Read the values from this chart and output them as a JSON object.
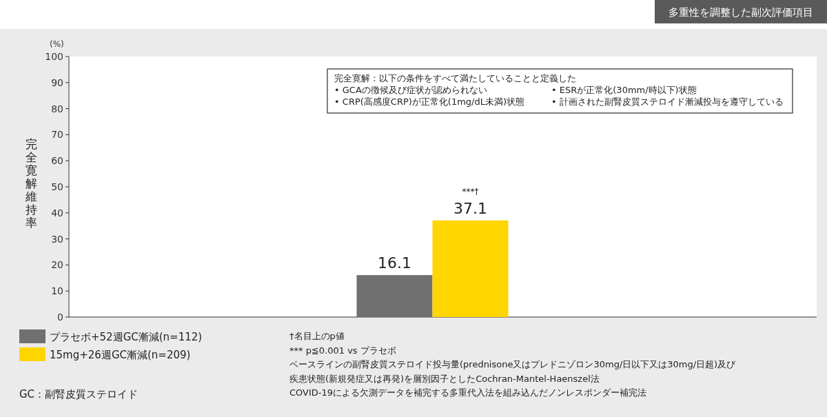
{
  "chart_data": {
    "type": "bar",
    "title": "多重性を調整した副次評価項目",
    "ylabel": "完全寛解維持率",
    "categories": [
      null
    ],
    "series": [
      {
        "name": "プラセボ+52週GC漸減(n=112)",
        "color": "#707070",
        "values": [
          16.1
        ]
      },
      {
        "name": "15mg+26週GC漸減(n=209)",
        "color": "#ffd500",
        "values": [
          37.1
        ]
      }
    ],
    "ylim": [
      0,
      100
    ],
    "yticks": [
      0,
      10,
      20,
      30,
      40,
      50,
      60,
      70,
      80,
      90,
      100
    ],
    "grid": false,
    "data_labels": true,
    "legend": "bottom left",
    "annotations": [
      "(%)",
      "完全寛解：以下の条件をすべて満たしていることと定義した",
      "• GCAの徴候及び症状が認められない",
      "• CRP(高感度CRP)が正常化(1mg/dL未満)状態",
      "• ESRが正常化(30mm/時以下)状態",
      "• 計画された副腎皮質ステロイド漸減投与を遵守している",
      {
        "text": "***†",
        "y": 37.1
      },
      "†名目上のp値",
      "*** p≦0.001 vs プラセボ",
      "ベースラインの副腎皮質ステロイド投与量(prednisone又はプレドニゾロン30mg/日以下又は30mg/日超)及び",
      "疾患状態(新規発症又は再発)を層別因子としたCochran-Mantel-Haenszel法",
      "COVID-19による欠測データを補完する多重代入法を組み込んだノンレスポンダー補完法",
      "GC：副腎皮質ステロイド"
    ]
  }
}
